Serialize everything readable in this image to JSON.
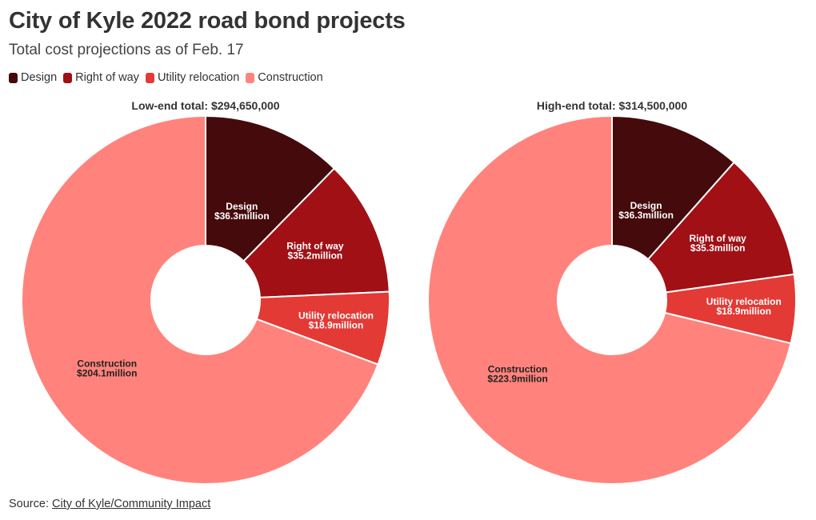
{
  "title": "City of Kyle 2022 road bond projects",
  "subtitle": "Total cost projections as of Feb. 17",
  "legend": [
    {
      "label": "Design",
      "color": "#450a0b"
    },
    {
      "label": "Right of way",
      "color": "#a01015"
    },
    {
      "label": "Utility relocation",
      "color": "#e33a36"
    },
    {
      "label": "Construction",
      "color": "#ff837c"
    }
  ],
  "source": {
    "prefix": "Source: ",
    "link_text": "City of Kyle/Community Impact"
  },
  "chart_data": [
    {
      "type": "pie",
      "donut": true,
      "title": "Low-end total: $294,650,000",
      "slices": [
        {
          "label": "Design",
          "value": 36.3,
          "value_label": "$36.3million",
          "color": "#450a0b"
        },
        {
          "label": "Right of way",
          "value": 35.2,
          "value_label": "$35.2million",
          "color": "#a01015"
        },
        {
          "label": "Utility relocation",
          "value": 18.9,
          "value_label": "$18.9million",
          "color": "#e33a36"
        },
        {
          "label": "Construction",
          "value": 204.1,
          "value_label": "$204.1million",
          "color": "#ff837c"
        }
      ]
    },
    {
      "type": "pie",
      "donut": true,
      "title": "High-end total: $314,500,000",
      "slices": [
        {
          "label": "Design",
          "value": 36.3,
          "value_label": "$36.3million",
          "color": "#450a0b"
        },
        {
          "label": "Right of way",
          "value": 35.3,
          "value_label": "$35.3million",
          "color": "#a01015"
        },
        {
          "label": "Utility relocation",
          "value": 18.9,
          "value_label": "$18.9million",
          "color": "#e33a36"
        },
        {
          "label": "Construction",
          "value": 223.9,
          "value_label": "$223.9million",
          "color": "#ff837c"
        }
      ]
    }
  ]
}
